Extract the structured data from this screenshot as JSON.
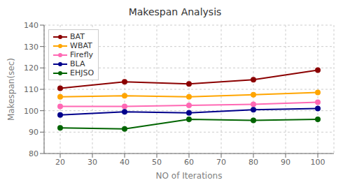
{
  "chart_data": {
    "type": "line",
    "title": "Makespan Analysis",
    "xlabel": "NO of Iterations",
    "ylabel": "Makespan(sec)",
    "x": [
      20,
      40,
      60,
      80,
      100
    ],
    "series": [
      {
        "name": "BAT",
        "color": "#8B0000",
        "marker": "circle",
        "values": [
          110.5,
          113.5,
          112.5,
          114.5,
          119.0
        ]
      },
      {
        "name": "WBAT",
        "color": "#FFA500",
        "marker": "circle",
        "values": [
          106.5,
          107.0,
          106.5,
          107.5,
          108.5
        ]
      },
      {
        "name": "Firefly",
        "color": "#FF69B4",
        "marker": "circle",
        "values": [
          102.0,
          102.0,
          102.5,
          103.0,
          104.0
        ]
      },
      {
        "name": "BLA",
        "color": "#00008B",
        "marker": "circle",
        "values": [
          98.0,
          99.5,
          99.0,
          100.5,
          101.0
        ]
      },
      {
        "name": "EHJSO",
        "color": "#006400",
        "marker": "circle",
        "values": [
          92.0,
          91.5,
          96.0,
          95.5,
          96.0
        ]
      }
    ],
    "xlim": [
      15,
      105
    ],
    "ylim": [
      80,
      140
    ],
    "xticks": [
      20,
      30,
      40,
      50,
      60,
      70,
      80,
      90,
      100
    ],
    "yticks": [
      80,
      90,
      100,
      110,
      120,
      130,
      140
    ],
    "grid": true,
    "legend": "upper left"
  }
}
